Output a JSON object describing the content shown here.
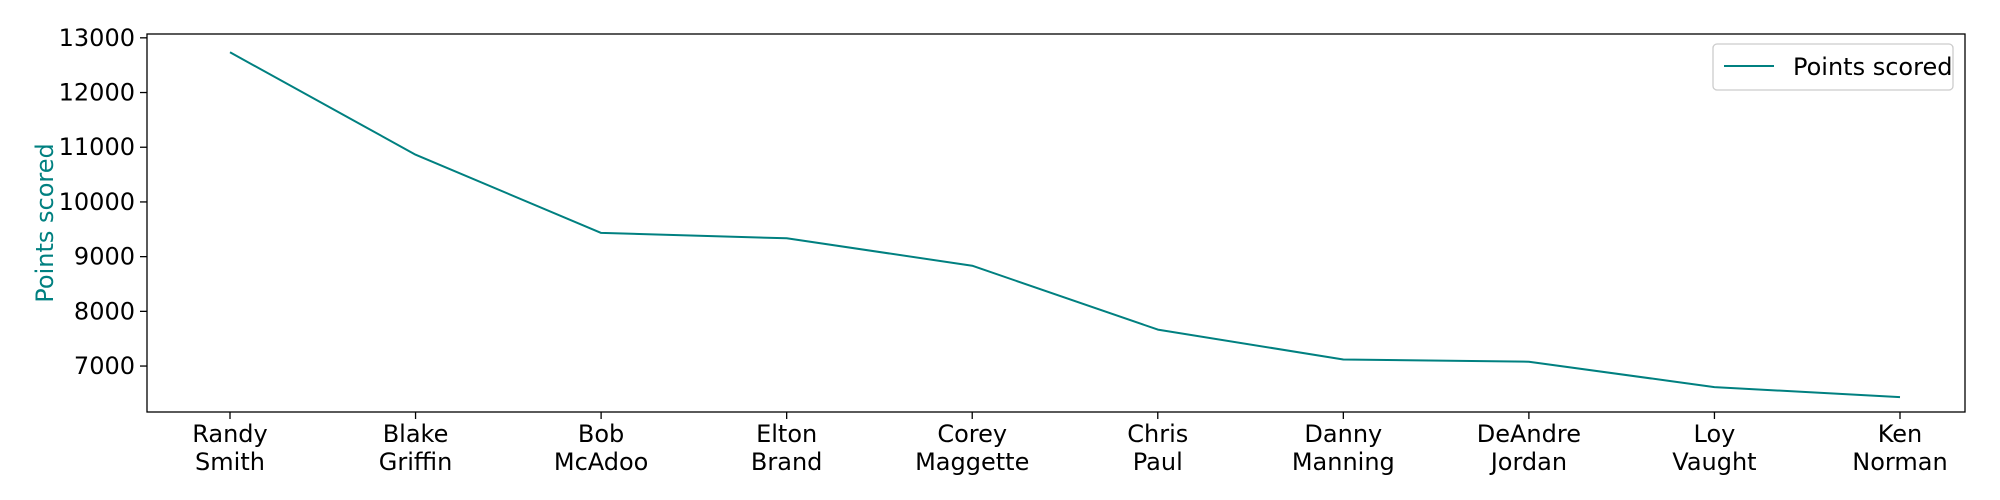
{
  "chart_data": {
    "type": "line",
    "categories": [
      [
        "Randy",
        "Smith"
      ],
      [
        "Blake",
        "Griffin"
      ],
      [
        "Bob",
        "McAdoo"
      ],
      [
        "Elton",
        "Brand"
      ],
      [
        "Corey",
        "Maggette"
      ],
      [
        "Chris",
        "Paul"
      ],
      [
        "Danny",
        "Manning"
      ],
      [
        "DeAndre",
        "Jordan"
      ],
      [
        "Loy",
        "Vaught"
      ],
      [
        "Ken",
        "Norman"
      ]
    ],
    "series": [
      {
        "name": "Points scored",
        "color": "#008080",
        "values": [
          12735,
          10863,
          9434,
          9336,
          8835,
          7666,
          7120,
          7079,
          6616,
          6432
        ]
      }
    ],
    "ylabel": "Points scored",
    "ylabel_color": "#008080",
    "ylim": [
      6160,
      13070
    ],
    "yticks": [
      7000,
      8000,
      9000,
      10000,
      11000,
      12000,
      13000
    ],
    "grid": false,
    "legend": "top-right"
  }
}
